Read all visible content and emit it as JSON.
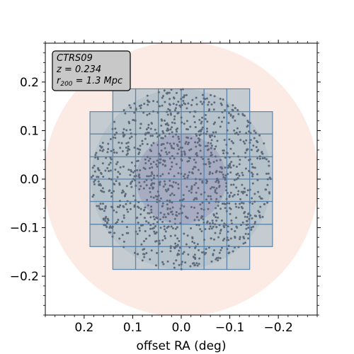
{
  "chart_data": {
    "type": "scatter",
    "xlabel": "offset RA (deg)",
    "ylabel": "",
    "xlim": [
      0.28,
      -0.28
    ],
    "ylim": [
      -0.28,
      0.28
    ],
    "x_reversed": true,
    "grid": false,
    "info_box": {
      "cluster": "CTRS09",
      "redshift": "z = 0.234",
      "r200_prefix": "r",
      "r200_sub": "200",
      "r200_suffix": " = 1.3 Mpc"
    },
    "x_ticks": [
      {
        "value": 0.2,
        "label": "0.2"
      },
      {
        "value": 0.1,
        "label": "0.1"
      },
      {
        "value": 0.0,
        "label": "0.0"
      },
      {
        "value": -0.1,
        "label": "−0.1"
      },
      {
        "value": -0.2,
        "label": "−0.2"
      }
    ],
    "y_ticks": [
      {
        "value": 0.2,
        "label": "0.2"
      },
      {
        "value": 0.1,
        "label": "0.1"
      },
      {
        "value": 0.0,
        "label": "0.0"
      },
      {
        "value": -0.1,
        "label": "−0.1"
      },
      {
        "value": -0.2,
        "label": "−0.2"
      }
    ],
    "circles": [
      {
        "name": "outer",
        "center": [
          0.0,
          0.0
        ],
        "radius": 0.283,
        "color": "#fbe3da",
        "opacity": 0.7
      },
      {
        "name": "middle",
        "center": [
          0.0,
          0.0
        ],
        "radius": 0.186,
        "color": "#c9c9c9",
        "opacity": 0.75
      },
      {
        "name": "inner",
        "center": [
          0.0,
          0.0
        ],
        "radius": 0.093,
        "color": "#9f7fb3",
        "opacity": 0.8
      }
    ],
    "tile_grid": {
      "x_edges": [
        0.188,
        0.141,
        0.094,
        0.047,
        0.0,
        -0.047,
        -0.094,
        -0.141,
        -0.188
      ],
      "y_edges": [
        0.186,
        0.139,
        0.093,
        0.046,
        0.0,
        -0.046,
        -0.093,
        -0.139,
        -0.186
      ],
      "skip_corners": true,
      "fill": "#a6bcc6",
      "stroke": "#5b85ad",
      "opacity": 0.65
    },
    "points": {
      "count": 1200,
      "max_radius": 0.186,
      "color": "#5f6b7d",
      "seed": 20234
    }
  }
}
